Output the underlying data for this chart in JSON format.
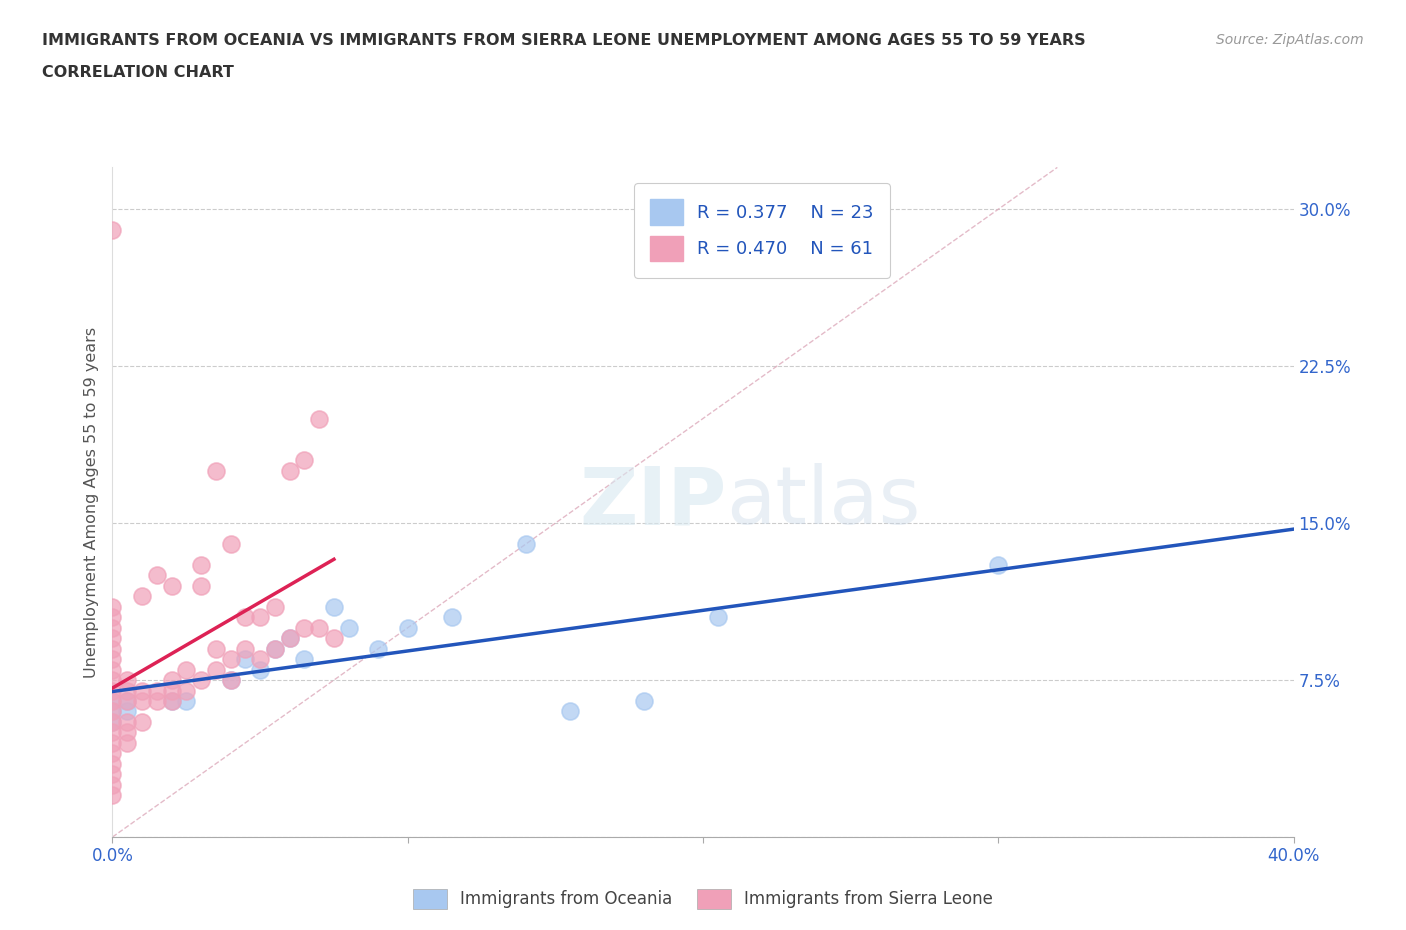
{
  "title_line1": "IMMIGRANTS FROM OCEANIA VS IMMIGRANTS FROM SIERRA LEONE UNEMPLOYMENT AMONG AGES 55 TO 59 YEARS",
  "title_line2": "CORRELATION CHART",
  "source_text": "Source: ZipAtlas.com",
  "ylabel": "Unemployment Among Ages 55 to 59 years",
  "watermark_zip": "ZIP",
  "watermark_atlas": "atlas",
  "xlim": [
    0.0,
    0.4
  ],
  "ylim": [
    0.0,
    0.32
  ],
  "oceania_color": "#a8c8f0",
  "sierraleone_color": "#f0a0b8",
  "oceania_line_color": "#2255bb",
  "sierraleone_line_color": "#dd2255",
  "grid_color": "#cccccc",
  "diag_color": "#ddbbcc",
  "background_color": "#ffffff",
  "legend_R_oceania": "0.377",
  "legend_N_oceania": "23",
  "legend_R_sierraleone": "0.470",
  "legend_N_sierraleone": "61",
  "legend_text_color": "#2255bb",
  "title_color": "#333333",
  "axis_label_color": "#555555",
  "tick_label_color": "#3366cc",
  "bottom_legend_oceania": "Immigrants from Oceania",
  "bottom_legend_sierraleone": "Immigrants from Sierra Leone",
  "oceania_scatter_x": [
    0.0,
    0.0,
    0.0,
    0.005,
    0.005,
    0.02,
    0.025,
    0.04,
    0.045,
    0.05,
    0.055,
    0.06,
    0.065,
    0.075,
    0.08,
    0.09,
    0.1,
    0.115,
    0.14,
    0.155,
    0.18,
    0.205,
    0.3
  ],
  "oceania_scatter_y": [
    0.055,
    0.06,
    0.065,
    0.065,
    0.06,
    0.065,
    0.065,
    0.075,
    0.085,
    0.08,
    0.09,
    0.095,
    0.085,
    0.11,
    0.1,
    0.09,
    0.1,
    0.105,
    0.14,
    0.06,
    0.065,
    0.105,
    0.13
  ],
  "sierraleone_scatter_x": [
    0.0,
    0.0,
    0.0,
    0.0,
    0.0,
    0.0,
    0.0,
    0.0,
    0.0,
    0.0,
    0.0,
    0.0,
    0.0,
    0.0,
    0.0,
    0.0,
    0.0,
    0.0,
    0.0,
    0.0,
    0.005,
    0.005,
    0.005,
    0.005,
    0.005,
    0.005,
    0.01,
    0.01,
    0.01,
    0.01,
    0.015,
    0.015,
    0.015,
    0.02,
    0.02,
    0.02,
    0.02,
    0.025,
    0.025,
    0.03,
    0.03,
    0.03,
    0.035,
    0.035,
    0.035,
    0.04,
    0.04,
    0.04,
    0.045,
    0.045,
    0.05,
    0.05,
    0.055,
    0.055,
    0.06,
    0.06,
    0.065,
    0.065,
    0.07,
    0.07,
    0.075
  ],
  "sierraleone_scatter_y": [
    0.065,
    0.06,
    0.055,
    0.05,
    0.045,
    0.04,
    0.035,
    0.03,
    0.025,
    0.02,
    0.07,
    0.075,
    0.08,
    0.085,
    0.09,
    0.095,
    0.1,
    0.105,
    0.11,
    0.29,
    0.065,
    0.07,
    0.075,
    0.055,
    0.05,
    0.045,
    0.065,
    0.07,
    0.115,
    0.055,
    0.065,
    0.07,
    0.125,
    0.065,
    0.07,
    0.075,
    0.12,
    0.07,
    0.08,
    0.075,
    0.12,
    0.13,
    0.08,
    0.09,
    0.175,
    0.075,
    0.085,
    0.14,
    0.09,
    0.105,
    0.085,
    0.105,
    0.09,
    0.11,
    0.095,
    0.175,
    0.1,
    0.18,
    0.1,
    0.2,
    0.095
  ]
}
